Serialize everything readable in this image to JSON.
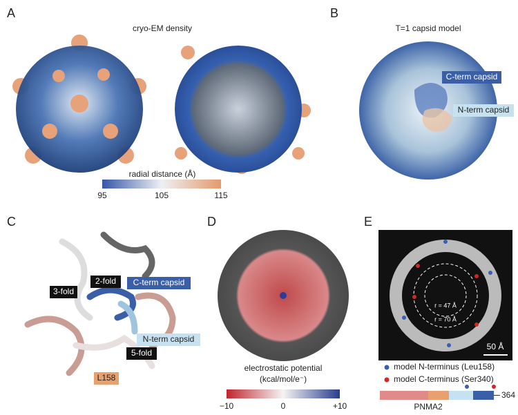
{
  "panels": [
    {
      "label": "A",
      "title": "cryo-EM density",
      "colorbar": {
        "label": "radial distance (Å)",
        "ticks": [
          "95",
          "105",
          "115"
        ]
      }
    },
    {
      "label": "B",
      "title": "T=1 capsid model",
      "annotations": [
        "C-term capsid",
        "N-term capsid"
      ]
    },
    {
      "label": "C",
      "annotations": [
        "2-fold",
        "C-term capsid",
        "3-fold",
        "N-term capsid",
        "5-fold",
        "L158"
      ]
    },
    {
      "label": "D",
      "colorbar": {
        "label": "electrostatic potential",
        "units": "(kcal/mol/e⁻)",
        "ticks": [
          "−10",
          "0",
          "+10"
        ]
      }
    },
    {
      "label": "E",
      "annotations": [
        "r = 47 Å",
        "r = 70 Å",
        "50 Å"
      ],
      "legend": [
        "model N-terminus (Leu158)",
        "model C-terminus (Ser340)"
      ],
      "domain_bar": {
        "end": "364",
        "name": "PNMA2"
      }
    }
  ]
}
